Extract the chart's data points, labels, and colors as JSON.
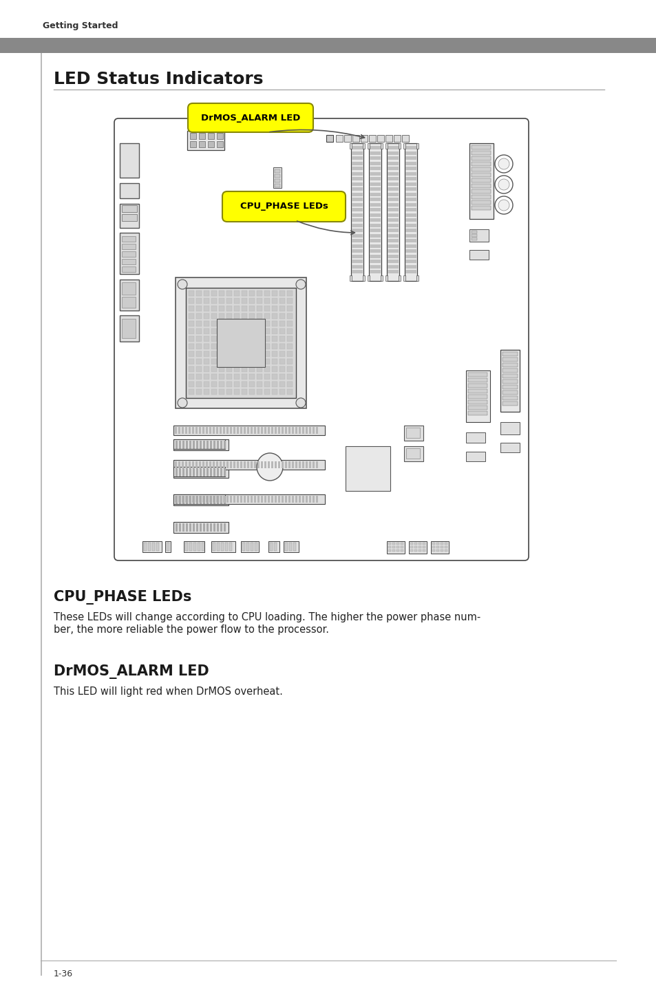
{
  "page_bg": "#ffffff",
  "header_text": "Getting Started",
  "title": "LED Status Indicators",
  "title_color": "#1a1a1a",
  "title_fontsize": 18,
  "section1_title": "CPU_PHASE LEDs",
  "section1_title_fontsize": 15,
  "section1_body1": "These LEDs will change according to CPU loading. The higher the power phase num-",
  "section1_body2": "ber, the more reliable the power flow to the processor.",
  "section2_title": "DrMOS_ALARM LED",
  "section2_title_fontsize": 15,
  "section2_body": "This LED will light red when DrMOS overheat.",
  "footer_text": "1-36",
  "callout1_text": "DrMOS_ALARM LED",
  "callout2_text": "CPU_PHASE LEDs",
  "callout_bg": "#ffff00",
  "callout_text_color": "#000000",
  "body_fontsize": 10.5,
  "body_color": "#222222",
  "board_bg": "#ffffff",
  "board_edge": "#555555"
}
